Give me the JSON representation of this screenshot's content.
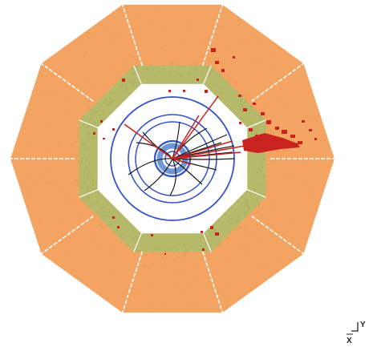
{
  "event_display": {
    "colors": {
      "background": "#ffffff",
      "outer_calorimeter": "#f4a462",
      "inner_calorimeter": "#b6b96a",
      "inner_calorimeter_speckle": "#9fa251",
      "cavity": "#ffffff",
      "segment_lines": "#ffffff",
      "tracker_rings": "#3553c8",
      "inner_ring_fill": "#6f97d6",
      "tracks": "#1a1a1a",
      "energy_deposits": "#c8231f"
    },
    "axis_indicator": {
      "icons": [
        "axis-tick-icon"
      ],
      "y_label": "Y",
      "x_label": "X"
    }
  }
}
